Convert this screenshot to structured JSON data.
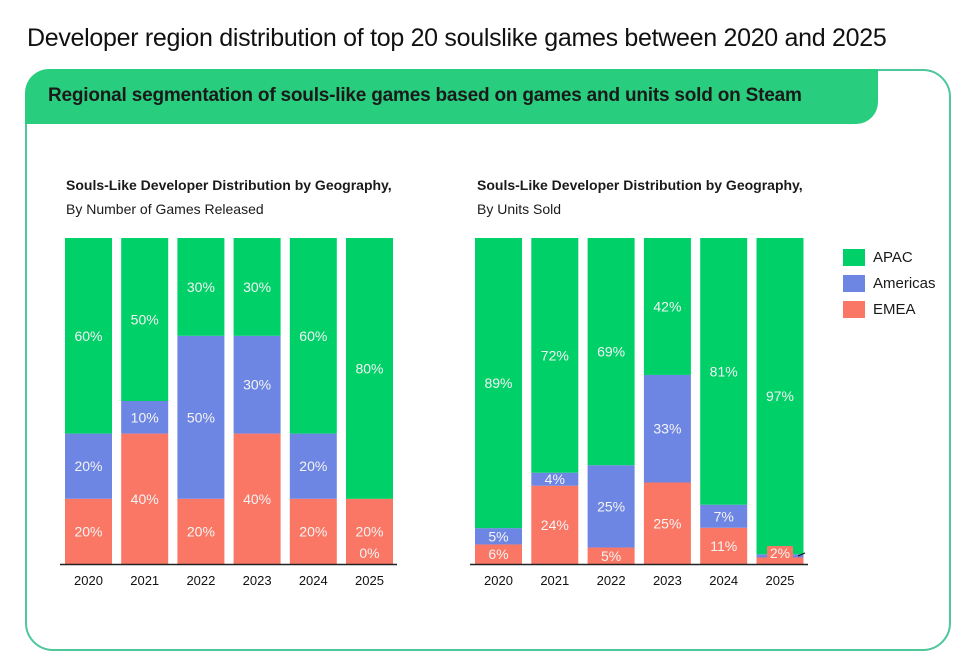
{
  "page": {
    "title": "Developer region distribution of top 20 soulslike games between 2020 and 2025",
    "banner": "Regional segmentation of souls-like games based on games and units sold on Steam"
  },
  "legend": [
    {
      "name": "APAC",
      "color": "#00d068"
    },
    {
      "name": "Americas",
      "color": "#6e86e3"
    },
    {
      "name": "EMEA",
      "color": "#fa7765"
    }
  ],
  "chart_data": [
    {
      "type": "bar",
      "stacked": true,
      "title": "Souls-Like Developer Distribution by Geography,",
      "subtitle": "By Number of Games Released",
      "categories": [
        "2020",
        "2021",
        "2022",
        "2023",
        "2024",
        "2025"
      ],
      "series": [
        {
          "name": "EMEA",
          "values": [
            20,
            40,
            20,
            40,
            20,
            20
          ],
          "labels": [
            "20%",
            "40%",
            "20%",
            "40%",
            "20%",
            "20%"
          ]
        },
        {
          "name": "Americas",
          "values": [
            20,
            10,
            50,
            30,
            20,
            0
          ],
          "labels": [
            "20%",
            "10%",
            "50%",
            "30%",
            "20%",
            "0%"
          ]
        },
        {
          "name": "APAC",
          "values": [
            60,
            50,
            30,
            30,
            60,
            80
          ],
          "labels": [
            "60%",
            "50%",
            "30%",
            "30%",
            "60%",
            "80%"
          ]
        }
      ],
      "ylim": [
        0,
        100
      ],
      "xlabel": "",
      "ylabel": "",
      "grid": false
    },
    {
      "type": "bar",
      "stacked": true,
      "title": "Souls-Like Developer Distribution by Geography,",
      "subtitle": "By Units Sold",
      "categories": [
        "2020",
        "2021",
        "2022",
        "2023",
        "2024",
        "2025"
      ],
      "series": [
        {
          "name": "EMEA",
          "values": [
            6,
            24,
            5,
            25,
            11,
            2
          ],
          "labels": [
            "6%",
            "24%",
            "5%",
            "25%",
            "11%",
            "2%"
          ]
        },
        {
          "name": "Americas",
          "values": [
            5,
            4,
            25,
            33,
            7,
            1
          ],
          "labels": [
            "5%",
            "4%",
            "25%",
            "33%",
            "7%",
            ""
          ]
        },
        {
          "name": "APAC",
          "values": [
            89,
            72,
            69,
            42,
            81,
            97
          ],
          "labels": [
            "89%",
            "72%",
            "69%",
            "42%",
            "81%",
            "97%"
          ]
        }
      ],
      "ylim": [
        0,
        100
      ],
      "xlabel": "",
      "ylabel": "",
      "grid": false
    }
  ]
}
